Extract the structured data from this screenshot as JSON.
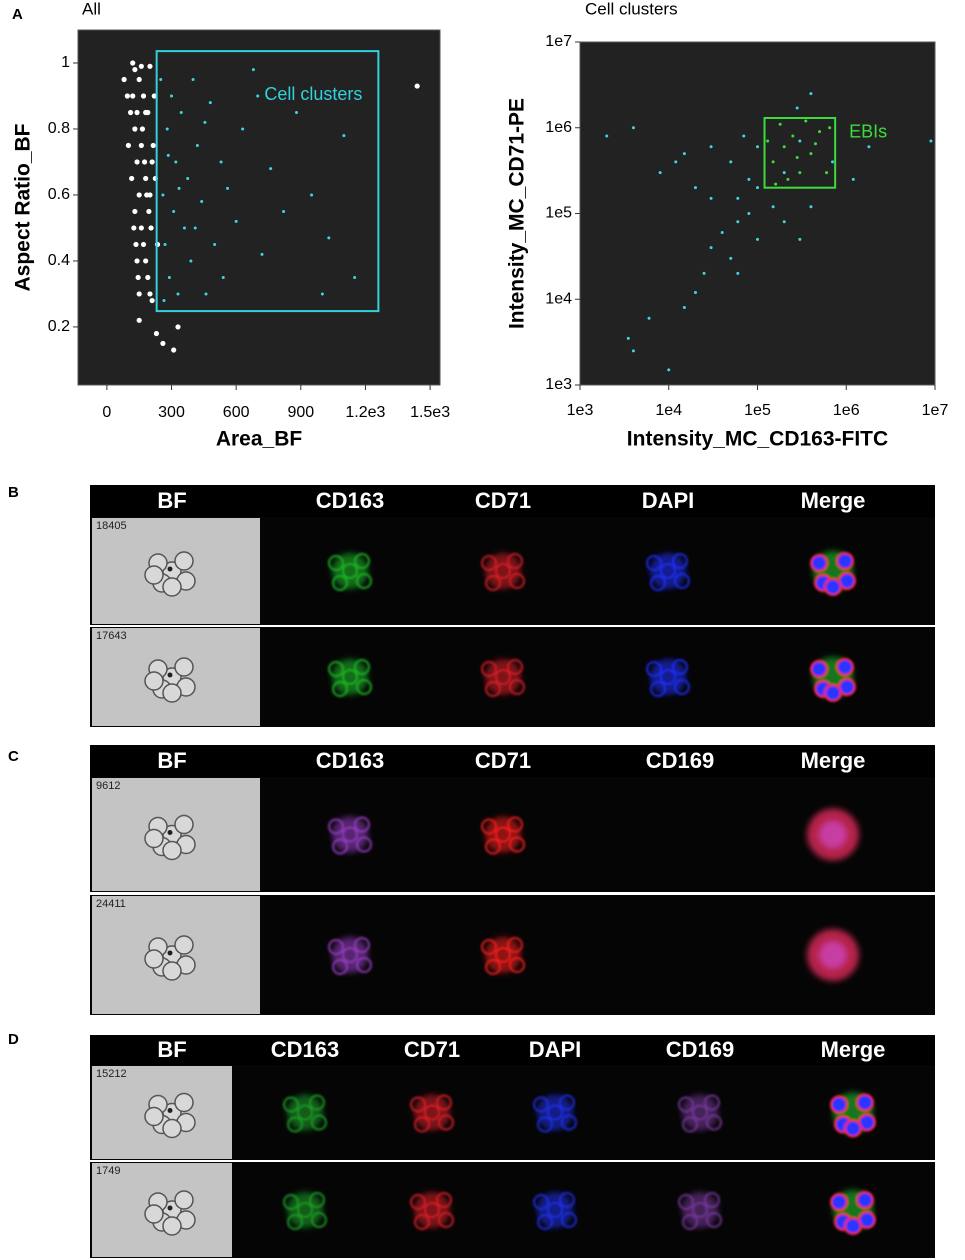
{
  "panel_labels": [
    "A",
    "B",
    "C",
    "D"
  ],
  "chart_data": [
    {
      "type": "scatter",
      "title": "All",
      "xlabel": "Area_BF",
      "ylabel": "Aspect Ratio_BF",
      "xscale": "linear",
      "yscale": "linear",
      "xlim": [
        -134,
        1546
      ],
      "ylim": [
        0.024,
        1.1
      ],
      "xticks": [
        0,
        300,
        600,
        900,
        {
          "value": 1200,
          "label": "1.2e3"
        },
        {
          "value": 1500,
          "label": "1.5e3"
        }
      ],
      "yticks": [
        0.2,
        0.4,
        0.6,
        0.8,
        1
      ],
      "gate": {
        "label": "Cell clusters",
        "color": "#2fd3dc",
        "x": [
          231,
          1260
        ],
        "y": [
          0.248,
          1.036
        ]
      },
      "series": [
        {
          "color": "#ffffff",
          "x": [
            80,
            95,
            110,
            120,
            130,
            140,
            150,
            160,
            170,
            180,
            190,
            200,
            210,
            130,
            140,
            150,
            100,
            115,
            125,
            135,
            145,
            165,
            175,
            185,
            195,
            205,
            215,
            225,
            235,
            150,
            230,
            260,
            310,
            330,
            1440,
            160,
            200,
            220,
            180,
            120,
            140,
            160,
            180,
            200,
            130,
            150,
            170,
            190,
            210
          ],
          "values": [
            0.95,
            0.9,
            0.85,
            1.0,
            0.98,
            0.7,
            0.6,
            0.5,
            0.45,
            0.4,
            0.35,
            0.3,
            0.28,
            0.55,
            0.4,
            0.3,
            0.75,
            0.65,
            0.5,
            0.45,
            0.35,
            0.8,
            0.7,
            0.6,
            0.55,
            0.5,
            0.75,
            0.65,
            0.45,
            0.22,
            0.18,
            0.15,
            0.13,
            0.2,
            0.93,
            0.99,
            0.99,
            0.9,
            0.85,
            0.9,
            0.85,
            0.75,
            0.65,
            0.6,
            0.8,
            0.95,
            0.9,
            0.85,
            0.7
          ]
        },
        {
          "color": "#3fd6de",
          "x": [
            250,
            260,
            270,
            280,
            290,
            300,
            310,
            320,
            330,
            345,
            360,
            375,
            390,
            400,
            420,
            440,
            460,
            480,
            500,
            530,
            560,
            600,
            630,
            680,
            720,
            760,
            820,
            880,
            950,
            1030,
            1100,
            1150,
            1000,
            265,
            285,
            335,
            410,
            455,
            540,
            700
          ],
          "values": [
            0.95,
            0.6,
            0.45,
            0.8,
            0.35,
            0.9,
            0.55,
            0.7,
            0.3,
            0.85,
            0.5,
            0.65,
            0.4,
            0.95,
            0.75,
            0.58,
            0.3,
            0.88,
            0.45,
            0.7,
            0.62,
            0.52,
            0.8,
            0.98,
            0.42,
            0.68,
            0.55,
            0.85,
            0.6,
            0.47,
            0.78,
            0.35,
            0.3,
            0.28,
            0.72,
            0.62,
            0.5,
            0.82,
            0.35,
            0.9
          ]
        }
      ]
    },
    {
      "type": "scatter",
      "title": "Cell clusters",
      "xlabel": "Intensity_MC_CD163-FITC",
      "ylabel": "Intensity_MC_CD71-PE",
      "xscale": "log",
      "yscale": "log",
      "xlim": [
        1000,
        10000000
      ],
      "ylim": [
        1000,
        10000000
      ],
      "xticks": [
        {
          "value": 1000,
          "label": "1e3"
        },
        {
          "value": 10000,
          "label": "1e4"
        },
        {
          "value": 100000,
          "label": "1e5"
        },
        {
          "value": 1000000,
          "label": "1e6"
        },
        {
          "value": 10000000,
          "label": "1e7"
        }
      ],
      "yticks": [
        {
          "value": 1000,
          "label": "1e3"
        },
        {
          "value": 10000,
          "label": "1e4"
        },
        {
          "value": 100000,
          "label": "1e5"
        },
        {
          "value": 1000000,
          "label": "1e6"
        },
        {
          "value": 10000000,
          "label": "1e7"
        }
      ],
      "gate": {
        "label": "EBIs",
        "color": "#3ddc3d",
        "x": [
          120000,
          750000
        ],
        "y": [
          200000,
          1300000
        ]
      },
      "series": [
        {
          "color": "#3fd6de",
          "x": [
            2000,
            4000,
            8000,
            15000,
            20000,
            30000,
            50000,
            60000,
            80000,
            100000,
            30000,
            40000,
            50000,
            25000,
            20000,
            15000,
            60000,
            80000,
            100000,
            150000,
            200000,
            300000,
            400000,
            1200000,
            700000,
            1800000,
            9000000,
            10000,
            4000,
            3500,
            6000,
            400000,
            280000,
            12000,
            70000,
            30000,
            100000,
            200000,
            60000,
            300000
          ],
          "values": [
            800000,
            1000000,
            300000,
            500000,
            200000,
            600000,
            400000,
            150000,
            250000,
            600000,
            40000,
            60000,
            30000,
            20000,
            12000,
            8000,
            80000,
            100000,
            200000,
            120000,
            80000,
            50000,
            120000,
            250000,
            400000,
            600000,
            700000,
            1500,
            2500,
            3500,
            6000,
            2500000,
            1700000,
            400000,
            800000,
            150000,
            50000,
            300000,
            20000,
            700000
          ]
        },
        {
          "color": "#3ddc3d",
          "x": [
            150000,
            200000,
            250000,
            300000,
            400000,
            500000,
            130000,
            180000,
            350000,
            600000,
            220000,
            450000,
            160000,
            280000,
            650000
          ],
          "values": [
            400000,
            600000,
            800000,
            300000,
            500000,
            900000,
            700000,
            1100000,
            1200000,
            300000,
            250000,
            650000,
            220000,
            450000,
            1000000
          ]
        }
      ]
    }
  ],
  "panels": [
    {
      "channels": [
        "BF",
        "CD163",
        "CD71",
        "DAPI",
        "Merge"
      ],
      "rows": [
        "18405",
        "17643"
      ]
    },
    {
      "channels": [
        "BF",
        "CD163",
        "CD71",
        "CD169",
        "Merge"
      ],
      "rows": [
        "9612",
        "24411"
      ]
    },
    {
      "channels": [
        "BF",
        "CD163",
        "CD71",
        "DAPI",
        "CD169",
        "Merge"
      ],
      "rows": [
        "15212",
        "1749"
      ]
    }
  ]
}
